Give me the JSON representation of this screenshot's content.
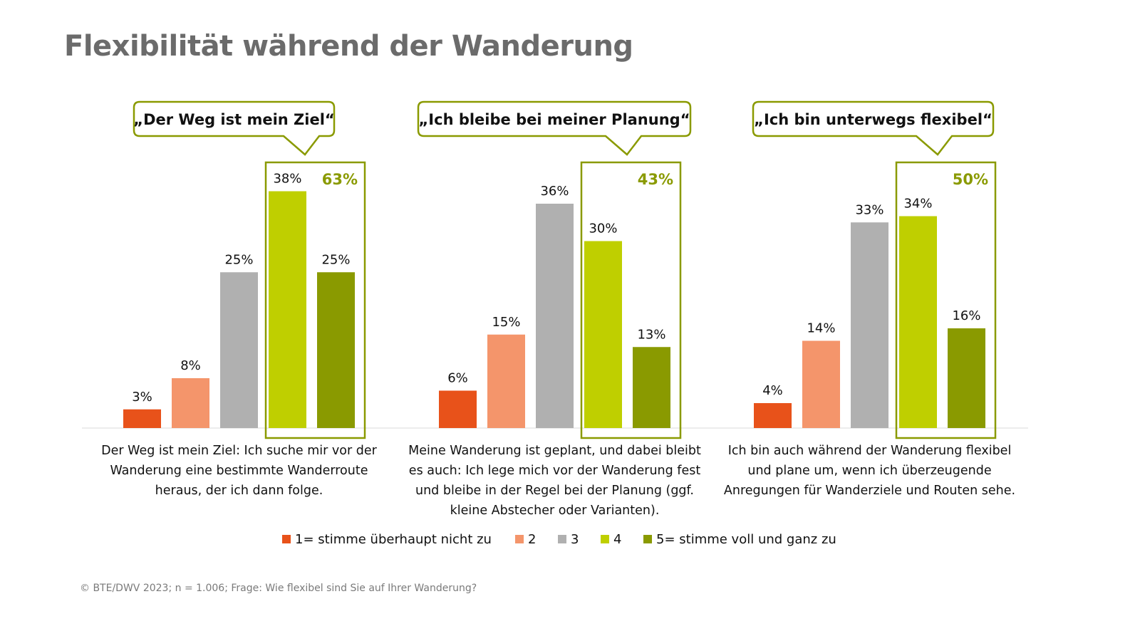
{
  "title": "Flexibilität während der Wanderung",
  "source": "© BTE/DWV 2023; n = 1.006; Frage: Wie flexibel sind Sie auf Ihrer Wanderung?",
  "colors": {
    "s1": "#e8521a",
    "s2": "#f4956b",
    "s3": "#b0b0b0",
    "s4": "#bfcf00",
    "s5": "#8a9a00",
    "accent": "#8a9a00"
  },
  "chart_data": {
    "type": "bar",
    "ylim": [
      0,
      45
    ],
    "grid": false,
    "legend_placement": "bottom",
    "legend": [
      "1= stimme überhaupt nicht zu",
      "2",
      "3",
      "4",
      "5= stimme voll und ganz zu"
    ],
    "groups": [
      {
        "callout": "„Der Weg ist mein Ziel“",
        "label_lines": [
          "Der Weg ist mein Ziel: Ich suche mir vor der",
          "Wanderung eine bestimmte Wanderroute",
          "heraus, der ich dann folge."
        ],
        "values": [
          3,
          8,
          25,
          38,
          25
        ],
        "value_labels": [
          "3%",
          "8%",
          "25%",
          "38%",
          "25%"
        ],
        "top2_label": "63%"
      },
      {
        "callout": "„Ich bleibe bei meiner Planung“",
        "label_lines": [
          "Meine Wanderung ist geplant, und dabei bleibt",
          "es auch: Ich lege mich vor der Wanderung fest",
          "und bleibe in der Regel bei der Planung (ggf.",
          "kleine Abstecher oder Varianten)."
        ],
        "values": [
          6,
          15,
          36,
          30,
          13
        ],
        "value_labels": [
          "6%",
          "15%",
          "36%",
          "30%",
          "13%"
        ],
        "top2_label": "43%"
      },
      {
        "callout": "„Ich bin unterwegs flexibel“",
        "label_lines": [
          "Ich bin auch während der Wanderung flexibel",
          "und plane um, wenn ich überzeugende",
          "Anregungen für Wanderziele und Routen sehe."
        ],
        "values": [
          4,
          14,
          33,
          34,
          16
        ],
        "value_labels": [
          "4%",
          "14%",
          "33%",
          "34%",
          "16%"
        ],
        "top2_label": "50%"
      }
    ]
  }
}
